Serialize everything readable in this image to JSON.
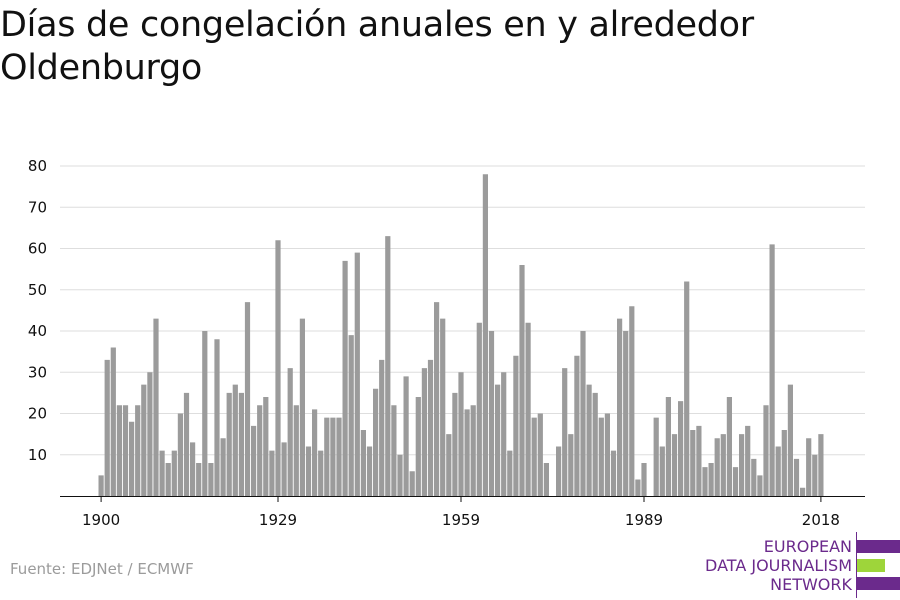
{
  "title": "Días de congelación anuales en y alrededor Oldenburgo",
  "source": "Fuente: EDJNet / ECMWF",
  "logo": {
    "lines": [
      "EUROPEAN",
      "DATA JOURNALISM",
      "NETWORK"
    ],
    "colors": [
      "#6b2a8c",
      "#9ed53a",
      "#6b2a8c"
    ]
  },
  "chart_data": {
    "type": "bar",
    "title": "",
    "xlabel": "",
    "ylabel": "",
    "ylim": [
      0,
      80
    ],
    "yticks": [
      10,
      20,
      30,
      40,
      50,
      60,
      70,
      80
    ],
    "xticks": [
      1900,
      1929,
      1959,
      1989,
      2018
    ],
    "grid": true,
    "bar_color": "#9b9b9b",
    "x": [
      1900,
      1901,
      1902,
      1903,
      1904,
      1905,
      1906,
      1907,
      1908,
      1909,
      1910,
      1911,
      1912,
      1913,
      1914,
      1915,
      1916,
      1917,
      1918,
      1919,
      1920,
      1921,
      1922,
      1923,
      1924,
      1925,
      1926,
      1927,
      1928,
      1929,
      1930,
      1931,
      1932,
      1933,
      1934,
      1935,
      1936,
      1937,
      1938,
      1939,
      1940,
      1941,
      1942,
      1943,
      1944,
      1945,
      1946,
      1947,
      1948,
      1949,
      1950,
      1951,
      1952,
      1953,
      1954,
      1955,
      1956,
      1957,
      1958,
      1959,
      1960,
      1961,
      1962,
      1963,
      1964,
      1965,
      1966,
      1967,
      1968,
      1969,
      1970,
      1971,
      1972,
      1973,
      1974,
      1975,
      1976,
      1977,
      1978,
      1979,
      1980,
      1981,
      1982,
      1983,
      1984,
      1985,
      1986,
      1987,
      1988,
      1989,
      1990,
      1991,
      1992,
      1993,
      1994,
      1995,
      1996,
      1997,
      1998,
      1999,
      2000,
      2001,
      2002,
      2003,
      2004,
      2005,
      2006,
      2007,
      2008,
      2009,
      2010,
      2011,
      2012,
      2013,
      2014,
      2015,
      2016,
      2017,
      2018
    ],
    "values": [
      5,
      33,
      36,
      22,
      22,
      18,
      22,
      27,
      30,
      43,
      11,
      8,
      11,
      20,
      25,
      13,
      8,
      40,
      8,
      38,
      14,
      25,
      27,
      25,
      47,
      17,
      22,
      24,
      11,
      62,
      13,
      31,
      22,
      43,
      12,
      21,
      11,
      19,
      19,
      19,
      57,
      39,
      59,
      16,
      12,
      26,
      33,
      63,
      22,
      10,
      29,
      6,
      24,
      31,
      33,
      47,
      43,
      15,
      25,
      30,
      21,
      22,
      42,
      78,
      40,
      27,
      30,
      11,
      34,
      56,
      42,
      19,
      20,
      8,
      0,
      12,
      31,
      15,
      34,
      40,
      27,
      25,
      19,
      20,
      11,
      43,
      40,
      46,
      4,
      8,
      0,
      19,
      12,
      24,
      15,
      23,
      52,
      16,
      17,
      7,
      8,
      14,
      15,
      24,
      7,
      15,
      17,
      9,
      5,
      22,
      61,
      12,
      16,
      27,
      9,
      2,
      14,
      10,
      15
    ]
  }
}
